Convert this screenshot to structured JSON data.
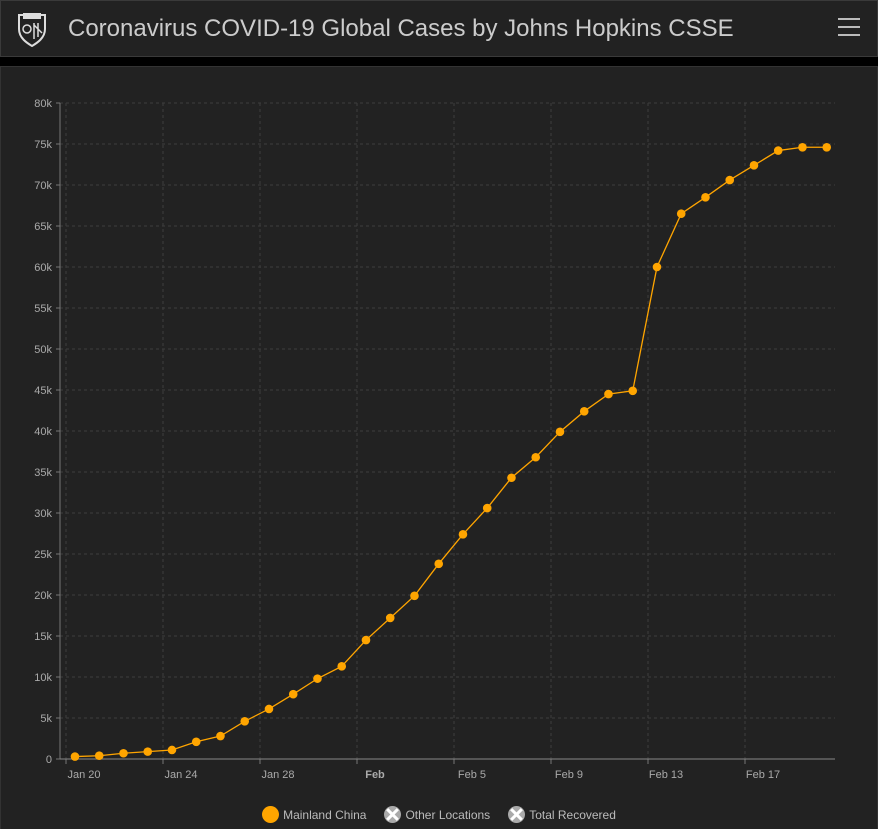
{
  "header": {
    "title": "Coronavirus COVID-19 Global Cases by Johns Hopkins CSSE"
  },
  "chart_data": {
    "type": "line",
    "title": "",
    "xlabel": "",
    "ylabel": "",
    "ylim": [
      0,
      80000
    ],
    "yticks": [
      "0",
      "5k",
      "10k",
      "15k",
      "20k",
      "25k",
      "30k",
      "35k",
      "40k",
      "45k",
      "50k",
      "55k",
      "60k",
      "65k",
      "70k",
      "75k",
      "80k"
    ],
    "xticks": [
      "Jan 20",
      "Jan 24",
      "Jan 28",
      "Feb",
      "Feb 5",
      "Feb 9",
      "Feb 13",
      "Feb 17"
    ],
    "grid": true,
    "legend_position": "bottom",
    "color": "#FFA500",
    "series": [
      {
        "name": "Mainland China",
        "x": [
          "Jan 20",
          "Jan 21",
          "Jan 22",
          "Jan 23",
          "Jan 24",
          "Jan 25",
          "Jan 26",
          "Jan 27",
          "Jan 28",
          "Jan 29",
          "Jan 30",
          "Jan 31",
          "Feb 1",
          "Feb 2",
          "Feb 3",
          "Feb 4",
          "Feb 5",
          "Feb 6",
          "Feb 7",
          "Feb 8",
          "Feb 9",
          "Feb 10",
          "Feb 11",
          "Feb 12",
          "Feb 13",
          "Feb 14",
          "Feb 15",
          "Feb 16",
          "Feb 17",
          "Feb 18",
          "Feb 19",
          "Feb 20"
        ],
        "values": [
          300,
          400,
          700,
          900,
          1100,
          2100,
          2800,
          4600,
          6100,
          7900,
          9800,
          11300,
          14500,
          17200,
          19900,
          23800,
          27400,
          30600,
          34300,
          36800,
          39900,
          42400,
          44500,
          44900,
          60000,
          66500,
          68500,
          70600,
          72400,
          74200,
          74600,
          74600
        ],
        "visible": true
      },
      {
        "name": "Other Locations",
        "visible": false
      },
      {
        "name": "Total Recovered",
        "visible": false
      }
    ]
  }
}
